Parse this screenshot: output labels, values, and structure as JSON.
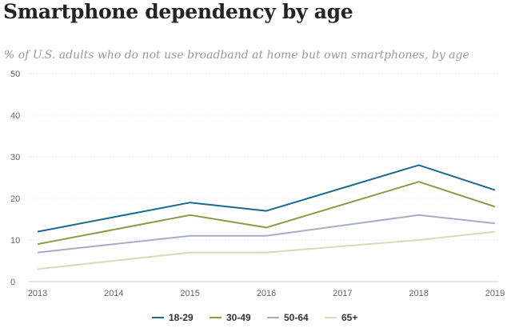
{
  "chart_data": {
    "type": "line",
    "title": "Smartphone dependency by age",
    "subtitle": "% of U.S. adults who do not use broadband at home but own smartphones, by age",
    "x": [
      "2013",
      "2015",
      "2016",
      "2018",
      "2019"
    ],
    "x_ticks": [
      "2013",
      "2014",
      "2015",
      "2016",
      "2017",
      "2018",
      "2019"
    ],
    "y_ticks": [
      "0",
      "10",
      "20",
      "30",
      "40",
      "50"
    ],
    "ylim": [
      0,
      50
    ],
    "xlim": [
      2013,
      2019
    ],
    "grid": true,
    "legend_position": "bottom",
    "series": [
      {
        "name": "18-29",
        "color": "#1a6a93",
        "values": [
          12,
          19,
          17,
          28,
          22
        ]
      },
      {
        "name": "30-49",
        "color": "#8b9a44",
        "values": [
          9,
          16,
          13,
          24,
          18
        ]
      },
      {
        "name": "50-64",
        "color": "#a3afc4",
        "values": [
          7,
          11,
          11,
          16,
          14
        ]
      },
      {
        "name": "65+",
        "color": "#d6dcb8",
        "values": [
          3,
          7,
          7,
          10,
          12
        ]
      }
    ]
  }
}
